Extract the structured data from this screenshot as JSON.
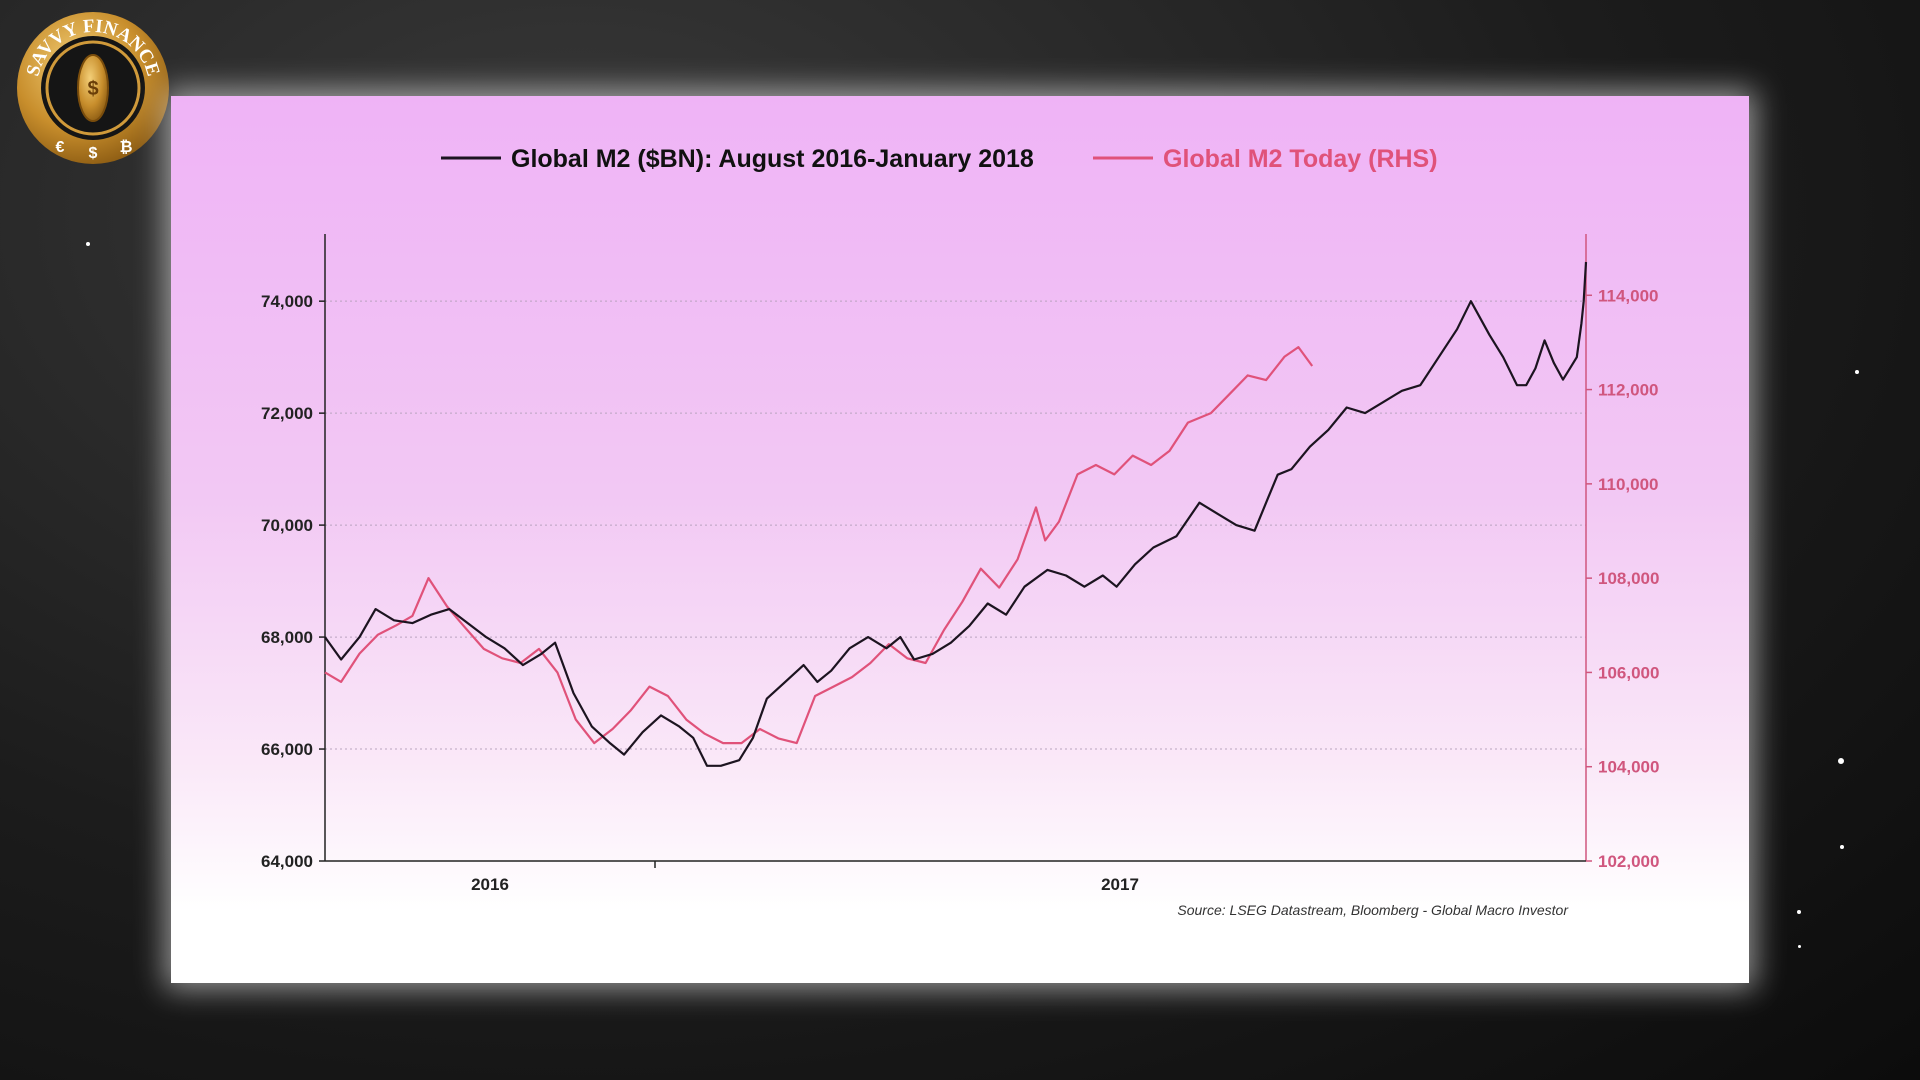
{
  "brand": {
    "logo_text": "SAVVY FINANCE",
    "currency_symbols": [
      "€",
      "$",
      "₿"
    ],
    "center_symbol": "$"
  },
  "colors": {
    "series_black": "#1c1420",
    "series_pink": "#e0527a",
    "right_axis": "#d0567e"
  },
  "chart_data": {
    "type": "line",
    "legend": [
      {
        "label": "Global M2 ($BN): August 2016-January 2018",
        "color": "#1c1420"
      },
      {
        "label": "Global M2 Today (RHS)",
        "color": "#e0527a"
      }
    ],
    "legend_position": "top",
    "grid": "horizontal dotted",
    "y_left": {
      "ticks": [
        "64,000",
        "66,000",
        "68,000",
        "70,000",
        "72,000",
        "74,000"
      ],
      "range": [
        64000,
        75200
      ]
    },
    "y_right": {
      "ticks": [
        "102,000",
        "104,000",
        "106,000",
        "108,000",
        "110,000",
        "112,000",
        "114,000"
      ],
      "range": [
        102000,
        115300
      ]
    },
    "x_ticks": [
      "2016",
      "2017"
    ],
    "x_range": [
      "2016-08-01",
      "2018-01-31"
    ],
    "source": "Source: LSEG Datastream, Bloomberg - Global Macro Investor",
    "series": [
      {
        "name": "Global M2 ($BN): August 2016-January 2018",
        "axis": "left",
        "points": [
          [
            "2016-08-01",
            68000
          ],
          [
            "2016-08-08",
            67600
          ],
          [
            "2016-08-16",
            68000
          ],
          [
            "2016-08-23",
            68500
          ],
          [
            "2016-08-31",
            68300
          ],
          [
            "2016-09-08",
            68250
          ],
          [
            "2016-09-16",
            68400
          ],
          [
            "2016-09-24",
            68500
          ],
          [
            "2016-10-02",
            68250
          ],
          [
            "2016-10-10",
            68000
          ],
          [
            "2016-10-18",
            67800
          ],
          [
            "2016-10-26",
            67500
          ],
          [
            "2016-11-03",
            67700
          ],
          [
            "2016-11-09",
            67900
          ],
          [
            "2016-11-17",
            67000
          ],
          [
            "2016-11-25",
            66400
          ],
          [
            "2016-12-03",
            66100
          ],
          [
            "2016-12-09",
            65900
          ],
          [
            "2016-12-17",
            66300
          ],
          [
            "2016-12-25",
            66600
          ],
          [
            "2017-01-02",
            66400
          ],
          [
            "2017-01-08",
            66200
          ],
          [
            "2017-01-14",
            65700
          ],
          [
            "2017-01-20",
            65700
          ],
          [
            "2017-01-28",
            65800
          ],
          [
            "2017-02-03",
            66200
          ],
          [
            "2017-02-09",
            66900
          ],
          [
            "2017-02-17",
            67200
          ],
          [
            "2017-02-25",
            67500
          ],
          [
            "2017-03-03",
            67200
          ],
          [
            "2017-03-09",
            67400
          ],
          [
            "2017-03-17",
            67800
          ],
          [
            "2017-03-25",
            68000
          ],
          [
            "2017-04-02",
            67800
          ],
          [
            "2017-04-08",
            68000
          ],
          [
            "2017-04-14",
            67600
          ],
          [
            "2017-04-22",
            67700
          ],
          [
            "2017-04-30",
            67900
          ],
          [
            "2017-05-08",
            68200
          ],
          [
            "2017-05-16",
            68600
          ],
          [
            "2017-05-24",
            68400
          ],
          [
            "2017-06-01",
            68900
          ],
          [
            "2017-06-11",
            69200
          ],
          [
            "2017-06-19",
            69100
          ],
          [
            "2017-06-27",
            68900
          ],
          [
            "2017-07-05",
            69100
          ],
          [
            "2017-07-11",
            68900
          ],
          [
            "2017-07-19",
            69300
          ],
          [
            "2017-07-27",
            69600
          ],
          [
            "2017-08-06",
            69800
          ],
          [
            "2017-08-16",
            70400
          ],
          [
            "2017-08-24",
            70200
          ],
          [
            "2017-09-01",
            70000
          ],
          [
            "2017-09-09",
            69900
          ],
          [
            "2017-09-15",
            70500
          ],
          [
            "2017-09-19",
            70900
          ],
          [
            "2017-09-25",
            71000
          ],
          [
            "2017-10-03",
            71400
          ],
          [
            "2017-10-11",
            71700
          ],
          [
            "2017-10-19",
            72100
          ],
          [
            "2017-10-27",
            72000
          ],
          [
            "2017-11-04",
            72200
          ],
          [
            "2017-11-12",
            72400
          ],
          [
            "2017-11-20",
            72500
          ],
          [
            "2017-11-28",
            73000
          ],
          [
            "2017-12-06",
            73500
          ],
          [
            "2017-12-12",
            74000
          ],
          [
            "2017-12-20",
            73400
          ],
          [
            "2017-12-26",
            73000
          ],
          [
            "2018-01-01",
            72500
          ],
          [
            "2018-01-05",
            72500
          ],
          [
            "2018-01-09",
            72800
          ],
          [
            "2018-01-13",
            73300
          ],
          [
            "2018-01-17",
            72900
          ],
          [
            "2018-01-21",
            72600
          ],
          [
            "2018-01-24",
            72800
          ],
          [
            "2018-01-27",
            73000
          ],
          [
            "2018-01-29",
            73600
          ],
          [
            "2018-01-30",
            74000
          ],
          [
            "2018-01-31",
            74700
          ]
        ]
      },
      {
        "name": "Global M2 Today (RHS)",
        "axis": "right",
        "points": [
          [
            "2016-08-01",
            106000
          ],
          [
            "2016-08-08",
            105800
          ],
          [
            "2016-08-16",
            106400
          ],
          [
            "2016-08-24",
            106800
          ],
          [
            "2016-09-01",
            107000
          ],
          [
            "2016-09-08",
            107200
          ],
          [
            "2016-09-15",
            108000
          ],
          [
            "2016-09-23",
            107400
          ],
          [
            "2016-09-30",
            107000
          ],
          [
            "2016-10-09",
            106500
          ],
          [
            "2016-10-17",
            106300
          ],
          [
            "2016-10-25",
            106200
          ],
          [
            "2016-11-02",
            106500
          ],
          [
            "2016-11-10",
            106000
          ],
          [
            "2016-11-18",
            105000
          ],
          [
            "2016-11-26",
            104500
          ],
          [
            "2016-12-04",
            104800
          ],
          [
            "2016-12-12",
            105200
          ],
          [
            "2016-12-20",
            105700
          ],
          [
            "2016-12-28",
            105500
          ],
          [
            "2017-01-05",
            105000
          ],
          [
            "2017-01-13",
            104700
          ],
          [
            "2017-01-21",
            104500
          ],
          [
            "2017-01-29",
            104500
          ],
          [
            "2017-02-06",
            104800
          ],
          [
            "2017-02-14",
            104600
          ],
          [
            "2017-02-22",
            104500
          ],
          [
            "2017-03-02",
            105500
          ],
          [
            "2017-03-10",
            105700
          ],
          [
            "2017-03-18",
            105900
          ],
          [
            "2017-03-26",
            106200
          ],
          [
            "2017-04-03",
            106600
          ],
          [
            "2017-04-11",
            106300
          ],
          [
            "2017-04-19",
            106200
          ],
          [
            "2017-04-27",
            106900
          ],
          [
            "2017-05-05",
            107500
          ],
          [
            "2017-05-13",
            108200
          ],
          [
            "2017-05-21",
            107800
          ],
          [
            "2017-05-29",
            108400
          ],
          [
            "2017-06-06",
            109500
          ],
          [
            "2017-06-10",
            108800
          ],
          [
            "2017-06-16",
            109200
          ],
          [
            "2017-06-24",
            110200
          ],
          [
            "2017-07-02",
            110400
          ],
          [
            "2017-07-10",
            110200
          ],
          [
            "2017-07-18",
            110600
          ],
          [
            "2017-07-26",
            110400
          ],
          [
            "2017-08-03",
            110700
          ],
          [
            "2017-08-11",
            111300
          ],
          [
            "2017-08-21",
            111500
          ],
          [
            "2017-08-29",
            111900
          ],
          [
            "2017-09-06",
            112300
          ],
          [
            "2017-09-14",
            112200
          ],
          [
            "2017-09-22",
            112700
          ],
          [
            "2017-09-28",
            112900
          ],
          [
            "2017-10-04",
            112500
          ]
        ]
      }
    ]
  }
}
